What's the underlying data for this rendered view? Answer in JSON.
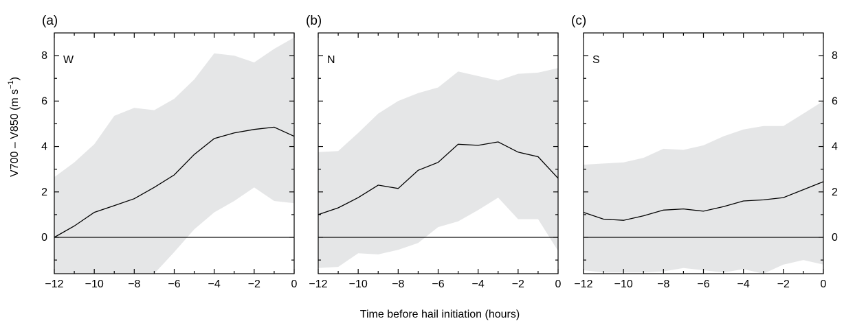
{
  "chart_data": [
    {
      "type": "area",
      "panel_label": "(a)",
      "region": "W",
      "xlim": [
        -12,
        0
      ],
      "ylim": [
        -1.6,
        9
      ],
      "x": [
        -12,
        -11,
        -10,
        -9,
        -8,
        -7,
        -6,
        -5,
        -4,
        -3,
        -2,
        -1,
        0
      ],
      "mean": [
        0.0,
        0.5,
        1.1,
        1.4,
        1.7,
        2.2,
        2.75,
        3.65,
        4.35,
        4.6,
        4.75,
        4.85,
        4.45
      ],
      "upper": [
        2.65,
        3.3,
        4.1,
        5.35,
        5.7,
        5.6,
        6.1,
        6.95,
        8.1,
        8.0,
        7.7,
        8.3,
        8.8
      ],
      "lower": [
        -1.6,
        -1.6,
        -1.6,
        -1.6,
        -1.6,
        -1.6,
        -0.65,
        0.35,
        1.1,
        1.6,
        2.2,
        1.6,
        1.5
      ]
    },
    {
      "type": "area",
      "panel_label": "(b)",
      "region": "N",
      "xlim": [
        -12,
        0
      ],
      "ylim": [
        -1.6,
        9
      ],
      "x": [
        -12,
        -11,
        -10,
        -9,
        -8,
        -7,
        -6,
        -5,
        -4,
        -3,
        -2,
        -1,
        0
      ],
      "mean": [
        1.0,
        1.3,
        1.75,
        2.3,
        2.15,
        2.95,
        3.3,
        4.1,
        4.05,
        4.2,
        3.75,
        3.55,
        2.6
      ],
      "upper": [
        3.75,
        3.8,
        4.6,
        5.45,
        6.0,
        6.35,
        6.6,
        7.3,
        7.1,
        6.9,
        7.2,
        7.25,
        7.45
      ],
      "lower": [
        -1.35,
        -1.3,
        -0.7,
        -0.75,
        -0.55,
        -0.25,
        0.45,
        0.7,
        1.2,
        1.75,
        0.8,
        0.8,
        -0.6
      ]
    },
    {
      "type": "area",
      "panel_label": "(c)",
      "region": "S",
      "xlim": [
        -12,
        0
      ],
      "ylim": [
        -1.6,
        9
      ],
      "x": [
        -12,
        -11,
        -10,
        -9,
        -8,
        -7,
        -6,
        -5,
        -4,
        -3,
        -2,
        -1,
        0
      ],
      "mean": [
        1.1,
        0.8,
        0.75,
        0.95,
        1.2,
        1.25,
        1.15,
        1.35,
        1.6,
        1.65,
        1.75,
        2.1,
        2.45
      ],
      "upper": [
        3.2,
        3.25,
        3.3,
        3.5,
        3.9,
        3.85,
        4.05,
        4.45,
        4.75,
        4.9,
        4.9,
        5.45,
        6.0
      ],
      "lower": [
        -1.45,
        -1.55,
        -1.55,
        -1.55,
        -1.5,
        -1.35,
        -1.45,
        -1.55,
        -1.4,
        -1.6,
        -1.2,
        -1.0,
        -1.2
      ]
    }
  ],
  "shared": {
    "xlabel": "Time before hail initiation (hours)",
    "ylabel_main": "V700 – V850 (m s",
    "ylabel_exp": "−1",
    "ylabel_end": ")",
    "x_ticks": [
      -12,
      -10,
      -8,
      -6,
      -4,
      -2,
      0
    ],
    "x_tick_labels": [
      "−12",
      "−10",
      "−8",
      "−6",
      "−4",
      "−2",
      "0"
    ],
    "y_ticks": [
      0,
      2,
      4,
      6,
      8
    ],
    "y_tick_labels": [
      "0",
      "2",
      "4",
      "6",
      "8"
    ],
    "band_color": "#e5e6e7",
    "line_color": "#000000"
  }
}
